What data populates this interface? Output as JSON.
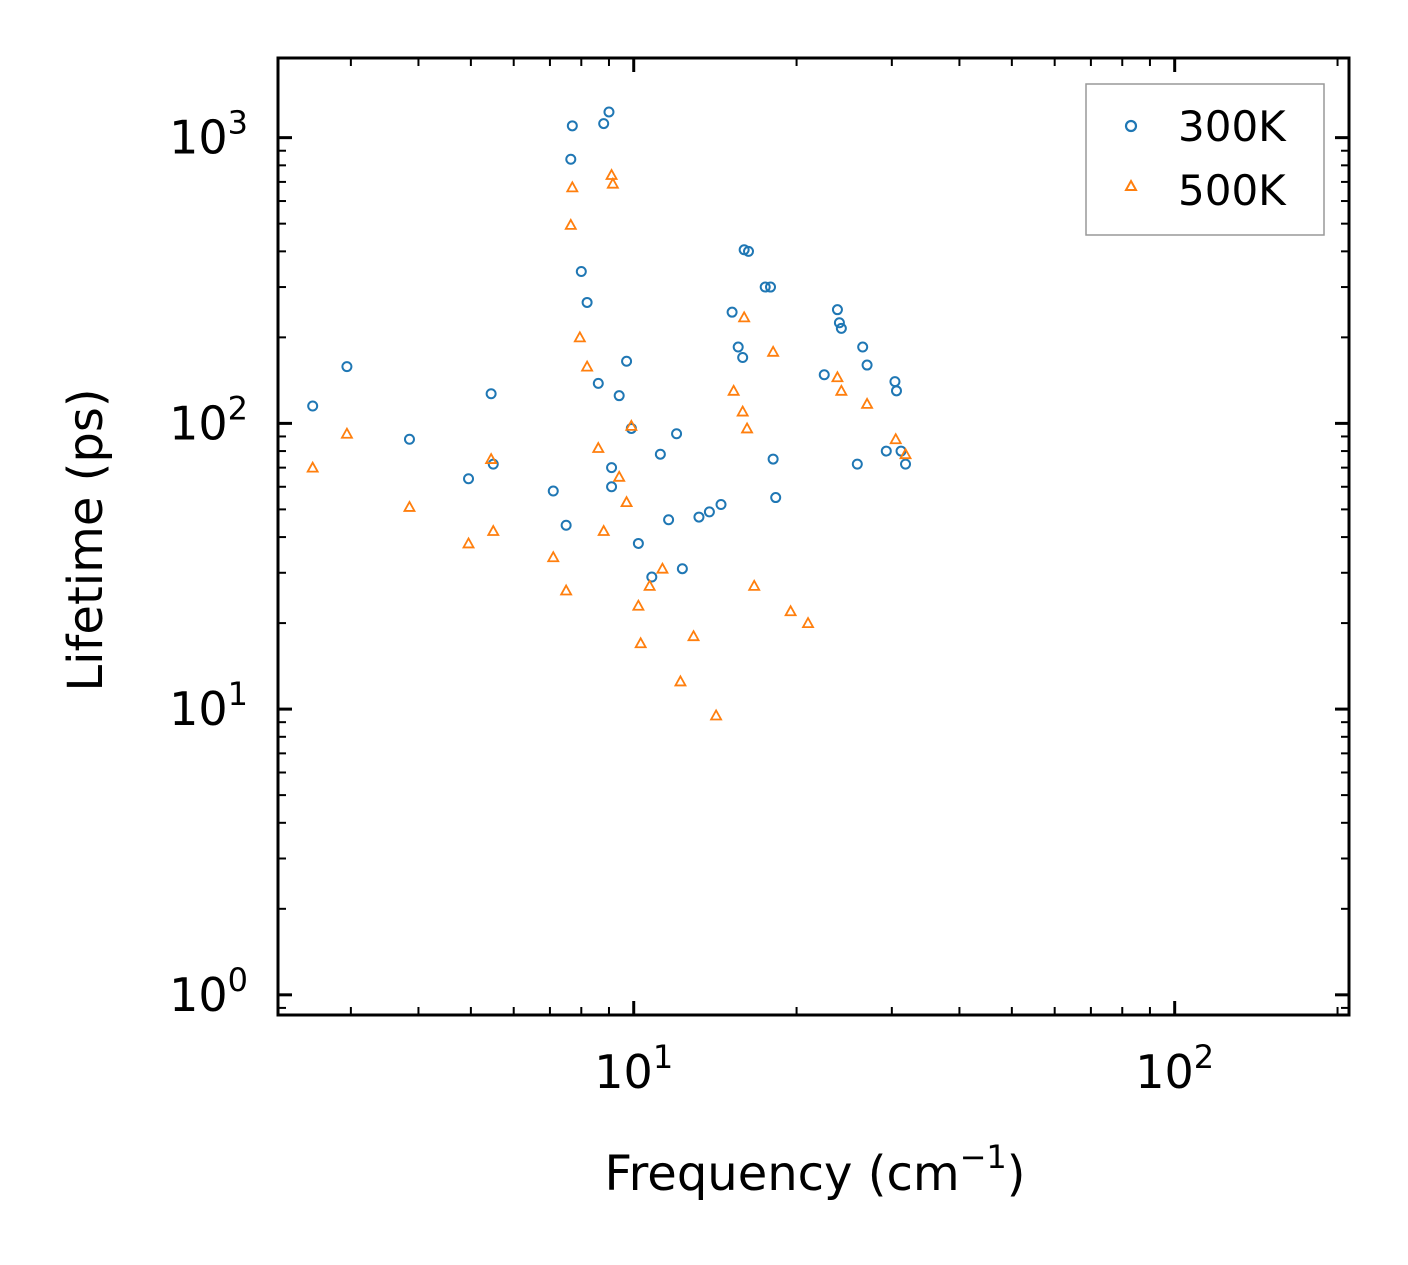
{
  "chart_data": {
    "type": "scatter",
    "xscale": "log",
    "yscale": "log",
    "xlim": [
      2.2,
      210
    ],
    "ylim": [
      0.85,
      1900
    ],
    "xlabel": "Frequency (cm",
    "xlabel_sup": "−1",
    "xlabel_close": ")",
    "ylabel": "Lifetime (ps)",
    "x_ticks": [
      {
        "value": 10,
        "base": "10",
        "exp": "1"
      },
      {
        "value": 100,
        "base": "10",
        "exp": "2"
      }
    ],
    "y_ticks": [
      {
        "value": 1,
        "base": "10",
        "exp": "0"
      },
      {
        "value": 10,
        "base": "10",
        "exp": "1"
      },
      {
        "value": 100,
        "base": "10",
        "exp": "2"
      },
      {
        "value": 1000,
        "base": "10",
        "exp": "3"
      }
    ],
    "legend_position": "top-right",
    "series": [
      {
        "name": "300K",
        "marker": "circle",
        "color": "#1f77b4",
        "x": [
          2.55,
          2.95,
          3.85,
          4.95,
          5.45,
          5.5,
          7.1,
          7.5,
          7.65,
          7.7,
          8.0,
          8.2,
          8.6,
          8.8,
          9.0,
          9.1,
          9.1,
          9.4,
          9.7,
          9.9,
          10.2,
          10.8,
          11.2,
          11.6,
          12.0,
          12.3,
          13.2,
          13.8,
          14.5,
          15.2,
          15.6,
          15.9,
          16.0,
          16.3,
          17.5,
          17.9,
          18.1,
          18.3,
          22.5,
          23.8,
          24.0,
          24.2,
          25.9,
          26.5,
          27.0,
          29.3,
          30.4,
          30.6,
          31.2,
          31.8
        ],
        "y": [
          115,
          158,
          88,
          64,
          127,
          72,
          58,
          44,
          840,
          1100,
          340,
          265,
          138,
          1120,
          1230,
          70,
          60,
          125,
          165,
          96,
          38,
          29,
          78,
          46,
          92,
          31,
          47,
          49,
          52,
          245,
          185,
          170,
          405,
          400,
          300,
          300,
          75,
          55,
          148,
          250,
          225,
          215,
          72,
          185,
          160,
          80,
          140,
          130,
          80,
          72
        ]
      },
      {
        "name": "500K",
        "marker": "triangle",
        "color": "#ff7f0e",
        "x": [
          2.55,
          2.95,
          3.85,
          4.95,
          5.45,
          5.5,
          7.1,
          7.5,
          7.65,
          7.7,
          7.95,
          8.2,
          8.6,
          8.8,
          9.1,
          9.15,
          9.4,
          9.7,
          9.9,
          10.2,
          10.3,
          10.7,
          11.3,
          12.2,
          12.9,
          14.2,
          15.3,
          15.9,
          16.0,
          16.2,
          16.7,
          18.1,
          19.5,
          21.0,
          23.8,
          24.2,
          27.0,
          30.5,
          31.8
        ],
        "y": [
          70,
          92,
          51,
          38,
          75,
          42,
          34,
          26,
          495,
          670,
          200,
          158,
          82,
          42,
          740,
          690,
          65,
          53,
          98,
          23,
          17,
          27,
          31,
          12.5,
          18,
          9.5,
          130,
          110,
          235,
          96,
          27,
          178,
          22,
          20,
          145,
          130,
          117,
          88,
          78
        ]
      }
    ]
  },
  "legend": {
    "items": [
      {
        "label": "300K"
      },
      {
        "label": "500K"
      }
    ]
  }
}
